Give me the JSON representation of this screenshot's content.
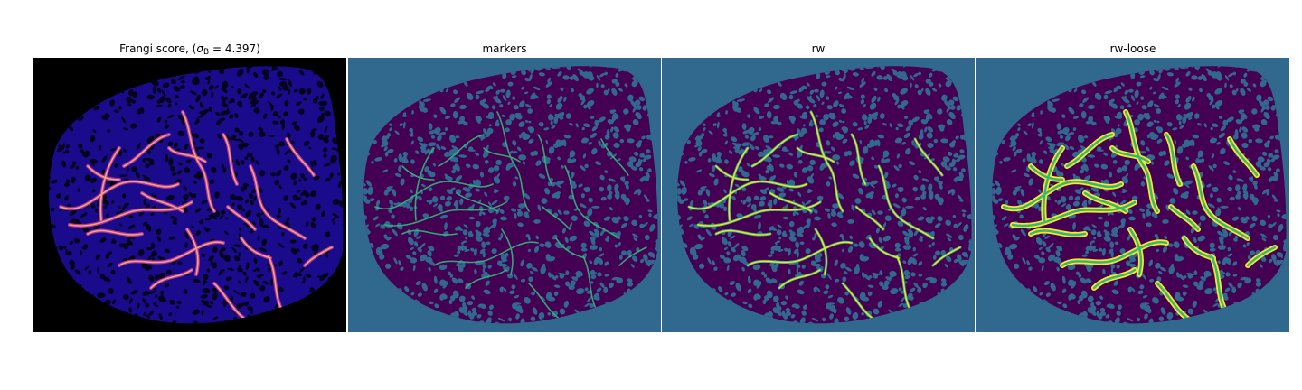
{
  "colors": {
    "frangi_bg": "#000000",
    "frangi_tissue": "#1a0a8c",
    "frangi_vessel_mid": "#b5379d",
    "frangi_vessel_hot": "#ffb070",
    "seg_bg": "#31688e",
    "seg_tissue": "#440154",
    "seg_vessel": "#35b779",
    "seg_vessel_bright": "#fde725"
  },
  "panels": [
    {
      "title_prefix": "Frangi score, (",
      "title_symbol": "σ",
      "title_subscript": "B",
      "title_suffix": " = 4.397)",
      "kind": "frangi"
    },
    {
      "title": "markers",
      "kind": "markers"
    },
    {
      "title": "rw",
      "kind": "rw"
    },
    {
      "title": "rw-loose",
      "kind": "rw-loose"
    }
  ]
}
